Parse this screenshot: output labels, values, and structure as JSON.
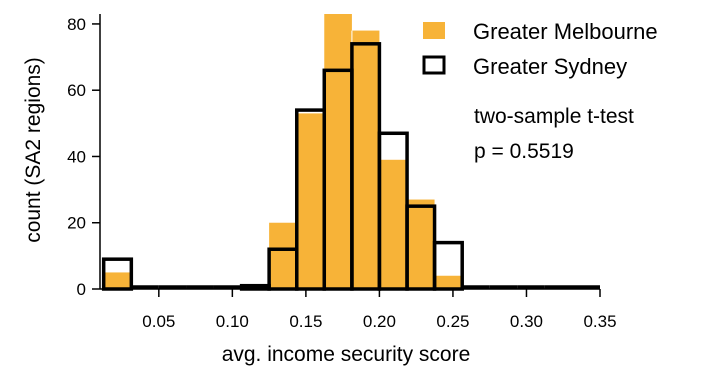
{
  "chart_data": {
    "type": "bar",
    "xlabel": "avg. income security score",
    "ylabel": "count (SA2 regions)",
    "xlim": [
      0.01,
      0.35
    ],
    "ylim": [
      0,
      83
    ],
    "xticks": [
      "0.05",
      "0.10",
      "0.15",
      "0.20",
      "0.25",
      "0.30",
      "0.35"
    ],
    "xtick_values": [
      0.05,
      0.1,
      0.15,
      0.2,
      0.25,
      0.3,
      0.35
    ],
    "yticks": [
      "0",
      "20",
      "40",
      "60",
      "80"
    ],
    "ytick_values": [
      0,
      20,
      40,
      60,
      80
    ],
    "bin_edges": [
      0.0125,
      0.0313,
      0.05,
      0.0688,
      0.0875,
      0.1063,
      0.125,
      0.1438,
      0.1625,
      0.1813,
      0.2,
      0.2188,
      0.2375,
      0.2563,
      0.275,
      0.2938,
      0.3125,
      0.3313,
      0.35
    ],
    "series": [
      {
        "name": "Greater Melbourne",
        "style": "filled",
        "color": "#f7b338",
        "values": [
          5,
          0,
          0,
          0,
          0,
          1,
          20,
          53,
          83,
          78,
          39,
          27,
          4,
          0,
          0,
          0,
          0,
          0
        ]
      },
      {
        "name": "Greater Sydney",
        "style": "outline",
        "color": "#000000",
        "values": [
          9,
          0,
          0,
          0,
          0,
          1,
          12,
          54,
          66,
          74,
          47,
          25,
          14,
          0,
          0,
          0,
          0,
          0
        ]
      }
    ],
    "legend_position": "top-right",
    "annotation": {
      "line1": "two-sample t-test",
      "line2": "p = 0.5519"
    }
  }
}
